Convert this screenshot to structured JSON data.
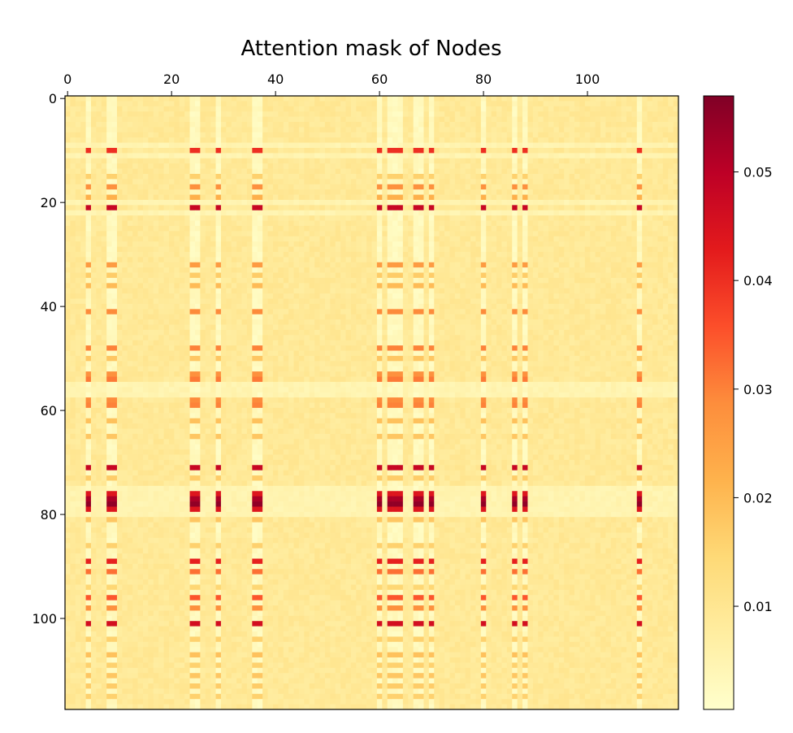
{
  "chart_data": {
    "type": "heatmap",
    "title": "Attention mask of Nodes",
    "xlabel": "",
    "ylabel": "",
    "n_rows": 118,
    "n_cols": 118,
    "xlim": [
      0,
      118
    ],
    "ylim": [
      118,
      0
    ],
    "x_tick_values": [
      0,
      20,
      40,
      60,
      80,
      100
    ],
    "x_tick_labels": [
      "0",
      "20",
      "40",
      "60",
      "80",
      "100"
    ],
    "y_tick_values": [
      0,
      20,
      40,
      60,
      80,
      100
    ],
    "y_tick_labels": [
      "0",
      "20",
      "40",
      "60",
      "80",
      "100"
    ],
    "colormap": "YlOrRd",
    "colormap_stops": [
      "#ffffcc",
      "#ffeda0",
      "#fed976",
      "#feb24c",
      "#fd8d3c",
      "#fc4e2a",
      "#e31a1c",
      "#bd0026",
      "#800026"
    ],
    "colorbar": {
      "range": [
        0.0005,
        0.057
      ],
      "tick_values": [
        0.01,
        0.02,
        0.03,
        0.04,
        0.05
      ],
      "tick_labels": [
        "0.01",
        "0.02",
        "0.03",
        "0.04",
        "0.05"
      ]
    },
    "baseline_value": 0.009,
    "light_columns": [
      4,
      8,
      9,
      24,
      25,
      29,
      36,
      37,
      60,
      62,
      63,
      64,
      67,
      68,
      70,
      80,
      86,
      88,
      110
    ],
    "row_intensity": [
      {
        "row": 10,
        "value": 0.04
      },
      {
        "row": 15,
        "value": 0.016
      },
      {
        "row": 17,
        "value": 0.028
      },
      {
        "row": 19,
        "value": 0.022
      },
      {
        "row": 21,
        "value": 0.048
      },
      {
        "row": 32,
        "value": 0.026
      },
      {
        "row": 34,
        "value": 0.017
      },
      {
        "row": 36,
        "value": 0.02
      },
      {
        "row": 41,
        "value": 0.029
      },
      {
        "row": 48,
        "value": 0.03
      },
      {
        "row": 50,
        "value": 0.018
      },
      {
        "row": 53,
        "value": 0.028
      },
      {
        "row": 54,
        "value": 0.031
      },
      {
        "row": 58,
        "value": 0.029
      },
      {
        "row": 59,
        "value": 0.03
      },
      {
        "row": 62,
        "value": 0.019
      },
      {
        "row": 65,
        "value": 0.018
      },
      {
        "row": 71,
        "value": 0.048
      },
      {
        "row": 73,
        "value": 0.017
      },
      {
        "row": 76,
        "value": 0.044
      },
      {
        "row": 77,
        "value": 0.052
      },
      {
        "row": 78,
        "value": 0.055
      },
      {
        "row": 79,
        "value": 0.044
      },
      {
        "row": 81,
        "value": 0.018
      },
      {
        "row": 86,
        "value": 0.016
      },
      {
        "row": 89,
        "value": 0.042
      },
      {
        "row": 91,
        "value": 0.032
      },
      {
        "row": 94,
        "value": 0.015
      },
      {
        "row": 96,
        "value": 0.035
      },
      {
        "row": 98,
        "value": 0.028
      },
      {
        "row": 101,
        "value": 0.046
      },
      {
        "row": 104,
        "value": 0.016
      },
      {
        "row": 107,
        "value": 0.019
      },
      {
        "row": 109,
        "value": 0.016
      },
      {
        "row": 111,
        "value": 0.018
      },
      {
        "row": 113,
        "value": 0.017
      },
      {
        "row": 115,
        "value": 0.016
      }
    ],
    "light_rows": [
      9,
      11,
      20,
      22,
      55,
      56,
      57,
      75,
      76,
      77,
      78,
      79,
      80
    ]
  }
}
